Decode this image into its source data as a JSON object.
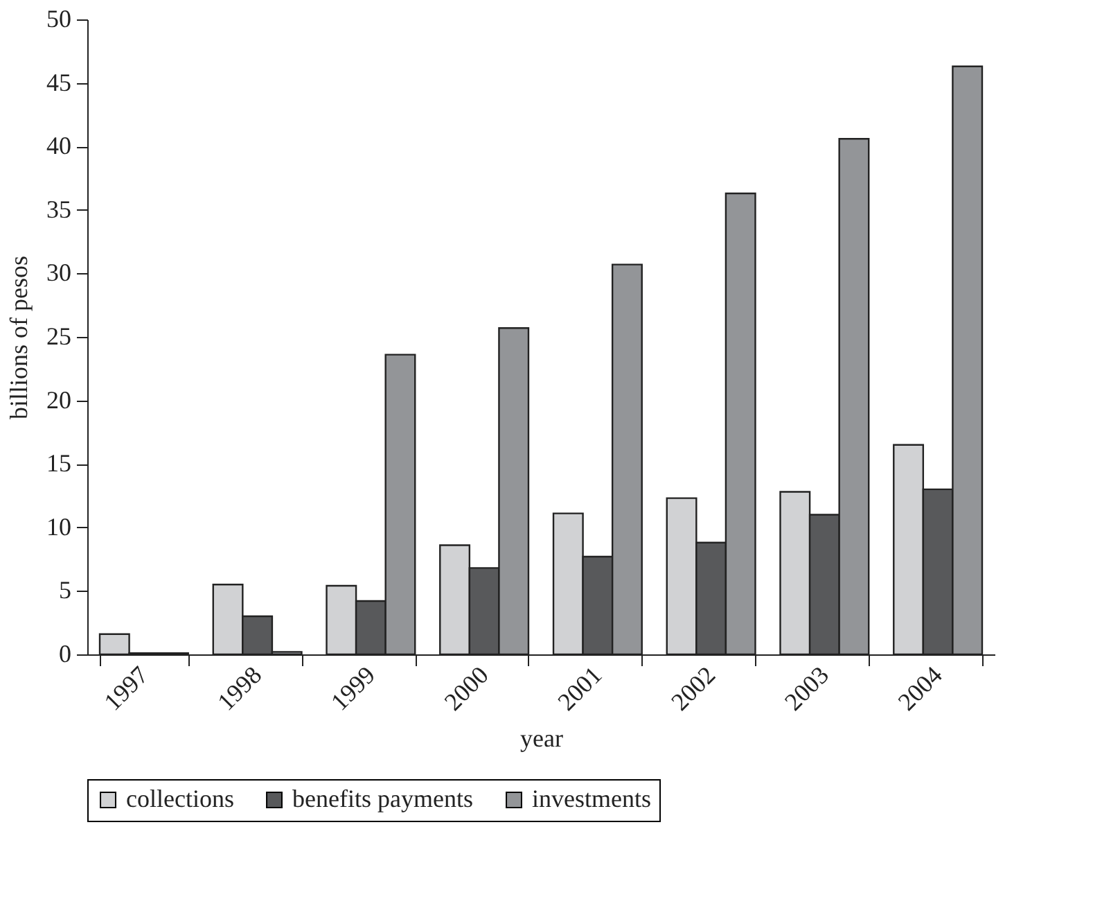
{
  "chart_data": {
    "type": "bar",
    "xlabel": "year",
    "ylabel": "billions of pesos",
    "categories": [
      "1997",
      "1998",
      "1999",
      "2000",
      "2001",
      "2002",
      "2003",
      "2004"
    ],
    "series": [
      {
        "name": "collections",
        "color": "#d1d2d4",
        "values": [
          1.6,
          5.5,
          5.4,
          8.6,
          11.1,
          12.3,
          12.8,
          16.5
        ]
      },
      {
        "name": "benefits payments",
        "color": "#58595b",
        "values": [
          0.1,
          3.0,
          4.2,
          6.8,
          7.7,
          8.8,
          11.0,
          13.0
        ]
      },
      {
        "name": "investments",
        "color": "#939598",
        "values": [
          0.1,
          0.2,
          23.6,
          25.7,
          30.7,
          36.3,
          40.6,
          46.3
        ]
      }
    ],
    "ylim": [
      0,
      50
    ],
    "yticks": [
      0,
      5,
      10,
      15,
      20,
      25,
      30,
      35,
      40,
      45,
      50
    ],
    "grid": false,
    "legend": "bottom"
  }
}
